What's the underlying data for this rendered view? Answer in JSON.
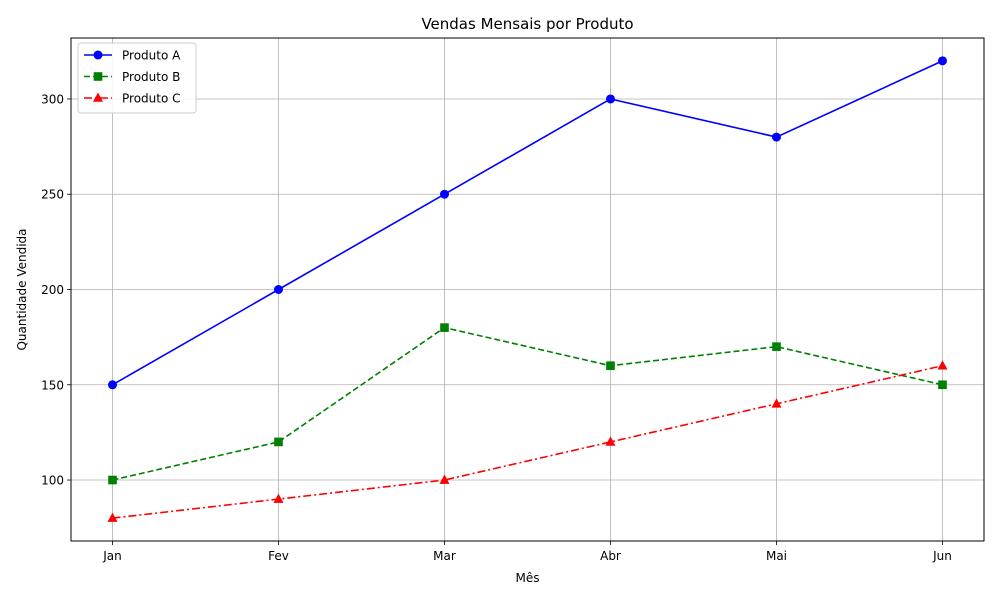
{
  "chart_data": {
    "type": "line",
    "title": "Vendas Mensais por Produto",
    "xlabel": "Mês",
    "ylabel": "Quantidade Vendida",
    "categories": [
      "Jan",
      "Fev",
      "Mar",
      "Abr",
      "Mai",
      "Jun"
    ],
    "ylim": [
      68,
      332
    ],
    "yticks": [
      100,
      150,
      200,
      250,
      300
    ],
    "grid": true,
    "legend_position": "top-left",
    "series": [
      {
        "name": "Produto A",
        "values": [
          150,
          200,
          250,
          300,
          280,
          320
        ],
        "color": "#0000ff",
        "marker": "circle",
        "linestyle": "solid"
      },
      {
        "name": "Produto B",
        "values": [
          100,
          120,
          180,
          160,
          170,
          150
        ],
        "color": "#008000",
        "marker": "square",
        "linestyle": "dashed"
      },
      {
        "name": "Produto C",
        "values": [
          80,
          90,
          100,
          120,
          140,
          160
        ],
        "color": "#ff0000",
        "marker": "triangle",
        "linestyle": "dashdot"
      }
    ]
  }
}
